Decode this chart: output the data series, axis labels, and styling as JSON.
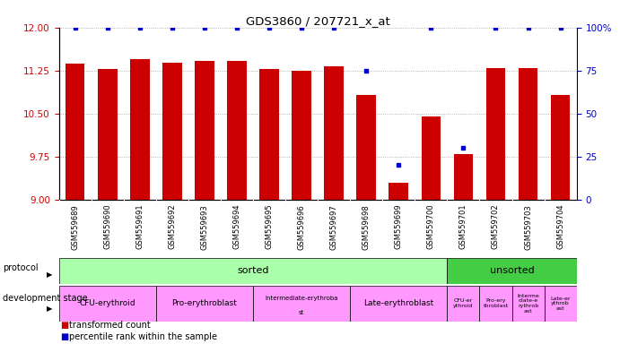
{
  "title": "GDS3860 / 207721_x_at",
  "samples": [
    "GSM559689",
    "GSM559690",
    "GSM559691",
    "GSM559692",
    "GSM559693",
    "GSM559694",
    "GSM559695",
    "GSM559696",
    "GSM559697",
    "GSM559698",
    "GSM559699",
    "GSM559700",
    "GSM559701",
    "GSM559702",
    "GSM559703",
    "GSM559704"
  ],
  "bar_values": [
    11.37,
    11.28,
    11.45,
    11.38,
    11.41,
    11.41,
    11.27,
    11.25,
    11.33,
    10.82,
    9.3,
    10.45,
    9.79,
    11.3,
    11.3,
    10.82
  ],
  "percentile_values": [
    100,
    100,
    100,
    100,
    100,
    100,
    100,
    100,
    100,
    75,
    20,
    100,
    30,
    100,
    100,
    100
  ],
  "bar_color": "#cc0000",
  "dot_color": "#0000cc",
  "ylim_left": [
    9,
    12
  ],
  "ylim_right": [
    0,
    100
  ],
  "yticks_left": [
    9,
    9.75,
    10.5,
    11.25,
    12
  ],
  "yticks_right": [
    0,
    25,
    50,
    75,
    100
  ],
  "protocol_sorted_count": 12,
  "protocol_sorted_color": "#aaffaa",
  "protocol_unsorted_color": "#44cc44",
  "dev_stage_color": "#ff99ff",
  "dev_stages_large": [
    {
      "label": "CFU-erythroid",
      "start": 0,
      "end": 3
    },
    {
      "label": "Pro-erythroblast",
      "start": 3,
      "end": 6
    },
    {
      "label": "Intermediate-erythroblast\nst",
      "start": 6,
      "end": 9
    },
    {
      "label": "Late-erythroblast",
      "start": 9,
      "end": 12
    }
  ],
  "dev_stages_small": [
    {
      "label": "CFU-er\nythroid",
      "start": 12,
      "end": 13
    },
    {
      "label": "Pro-ery\nthroblast",
      "start": 13,
      "end": 14
    },
    {
      "label": "Interme\ndiate-e\nrythrob\nast",
      "start": 14,
      "end": 15
    },
    {
      "label": "Late-er\nythrob\nast",
      "start": 15,
      "end": 16
    }
  ],
  "legend_items": [
    {
      "color": "#cc0000",
      "label": "transformed count"
    },
    {
      "color": "#0000cc",
      "label": "percentile rank within the sample"
    }
  ],
  "bg_color": "#ffffff",
  "tick_label_color_left": "#cc0000",
  "tick_label_color_right": "#0000cc"
}
